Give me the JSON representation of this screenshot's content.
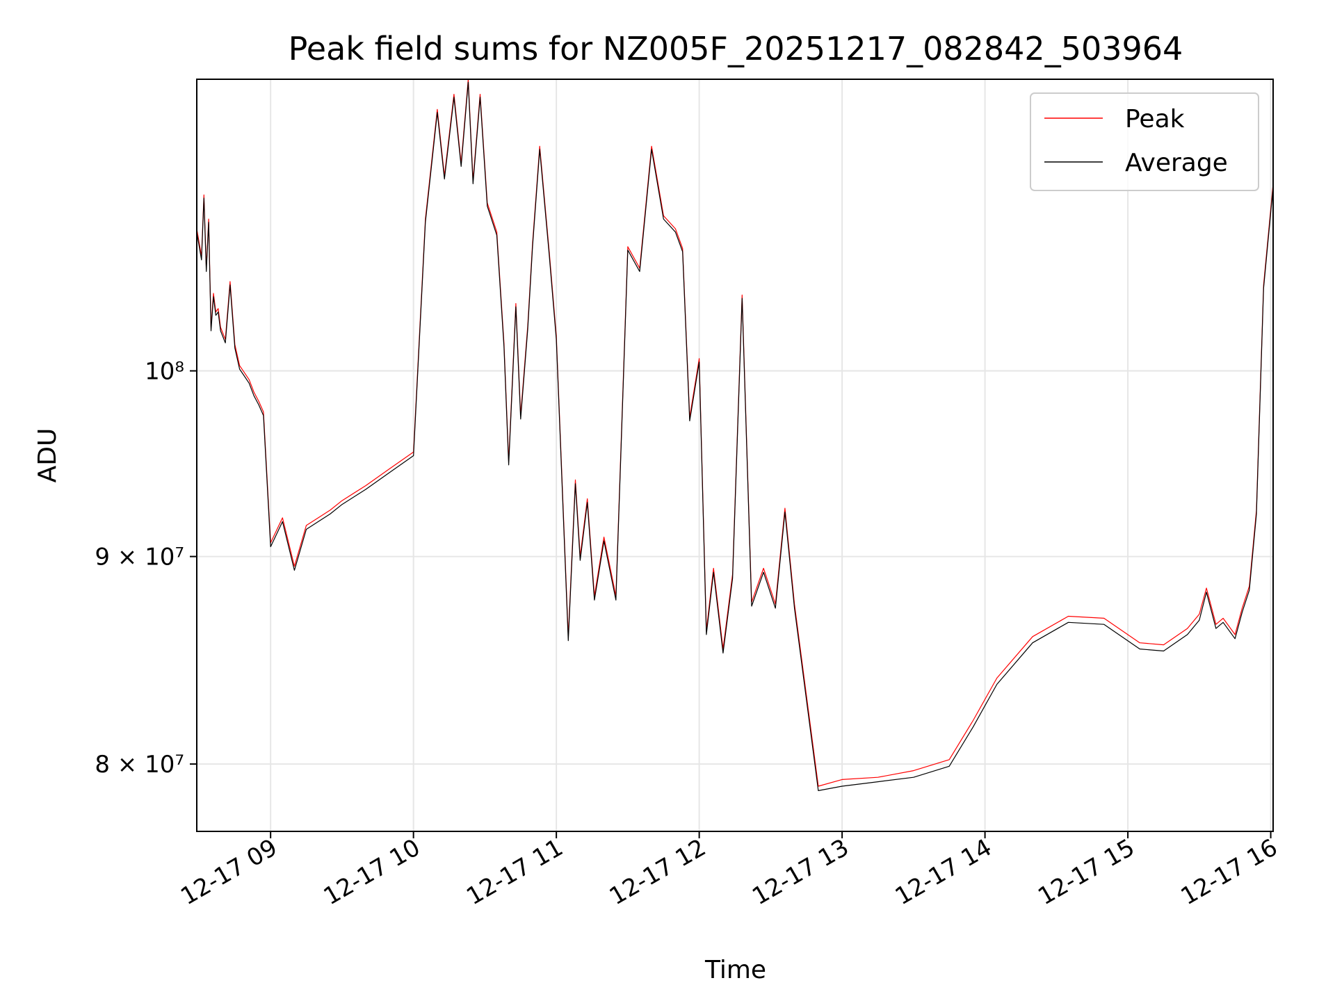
{
  "chart_data": {
    "type": "line",
    "title": "Peak field sums for NZ005F_20251217_082842_503964",
    "xlabel": "Time",
    "ylabel": "ADU",
    "y_scale": "log",
    "xlim": [
      "2025-12-17 08:29",
      "2025-12-17 16:01"
    ],
    "ylim": [
      77000000,
      118000000
    ],
    "x_ticks": [
      {
        "value": "2025-12-17 09:00",
        "label": "12-17 09"
      },
      {
        "value": "2025-12-17 10:00",
        "label": "12-17 10"
      },
      {
        "value": "2025-12-17 11:00",
        "label": "12-17 11"
      },
      {
        "value": "2025-12-17 12:00",
        "label": "12-17 12"
      },
      {
        "value": "2025-12-17 13:00",
        "label": "12-17 13"
      },
      {
        "value": "2025-12-17 14:00",
        "label": "12-17 14"
      },
      {
        "value": "2025-12-17 15:00",
        "label": "12-17 15"
      },
      {
        "value": "2025-12-17 16:00",
        "label": "12-17 16"
      }
    ],
    "y_ticks": [
      {
        "value": 80000000,
        "label": "8 × 10⁷"
      },
      {
        "value": 90000000,
        "label": "9 × 10⁷"
      },
      {
        "value": 100000000,
        "label": "10⁸"
      }
    ],
    "grid": true,
    "legend_position": "top-right",
    "series": [
      {
        "name": "Peak",
        "color": "#ff0000",
        "x": [
          "2025-12-17 08:29",
          "2025-12-17 08:31",
          "2025-12-17 08:32",
          "2025-12-17 08:33",
          "2025-12-17 08:34",
          "2025-12-17 08:35",
          "2025-12-17 08:36",
          "2025-12-17 08:37",
          "2025-12-17 08:38",
          "2025-12-17 08:39",
          "2025-12-17 08:41",
          "2025-12-17 08:43",
          "2025-12-17 08:45",
          "2025-12-17 08:47",
          "2025-12-17 08:49",
          "2025-12-17 08:51",
          "2025-12-17 08:53",
          "2025-12-17 08:55",
          "2025-12-17 08:57",
          "2025-12-17 09:00",
          "2025-12-17 09:05",
          "2025-12-17 09:10",
          "2025-12-17 09:15",
          "2025-12-17 09:20",
          "2025-12-17 09:25",
          "2025-12-17 09:30",
          "2025-12-17 09:40",
          "2025-12-17 09:50",
          "2025-12-17 10:00",
          "2025-12-17 10:05",
          "2025-12-17 10:10",
          "2025-12-17 10:13",
          "2025-12-17 10:17",
          "2025-12-17 10:20",
          "2025-12-17 10:23",
          "2025-12-17 10:25",
          "2025-12-17 10:28",
          "2025-12-17 10:31",
          "2025-12-17 10:35",
          "2025-12-17 10:38",
          "2025-12-17 10:40",
          "2025-12-17 10:43",
          "2025-12-17 10:45",
          "2025-12-17 10:48",
          "2025-12-17 10:50",
          "2025-12-17 10:53",
          "2025-12-17 10:57",
          "2025-12-17 11:00",
          "2025-12-17 11:05",
          "2025-12-17 11:08",
          "2025-12-17 11:10",
          "2025-12-17 11:13",
          "2025-12-17 11:16",
          "2025-12-17 11:20",
          "2025-12-17 11:25",
          "2025-12-17 11:30",
          "2025-12-17 11:35",
          "2025-12-17 11:40",
          "2025-12-17 11:45",
          "2025-12-17 11:50",
          "2025-12-17 11:53",
          "2025-12-17 11:56",
          "2025-12-17 12:00",
          "2025-12-17 12:03",
          "2025-12-17 12:06",
          "2025-12-17 12:10",
          "2025-12-17 12:14",
          "2025-12-17 12:18",
          "2025-12-17 12:22",
          "2025-12-17 12:27",
          "2025-12-17 12:32",
          "2025-12-17 12:36",
          "2025-12-17 12:40",
          "2025-12-17 12:50",
          "2025-12-17 13:00",
          "2025-12-17 13:15",
          "2025-12-17 13:30",
          "2025-12-17 13:45",
          "2025-12-17 13:55",
          "2025-12-17 14:05",
          "2025-12-17 14:20",
          "2025-12-17 14:35",
          "2025-12-17 14:50",
          "2025-12-17 15:05",
          "2025-12-17 15:15",
          "2025-12-17 15:25",
          "2025-12-17 15:30",
          "2025-12-17 15:33",
          "2025-12-17 15:37",
          "2025-12-17 15:40",
          "2025-12-17 15:45",
          "2025-12-17 15:48",
          "2025-12-17 15:51",
          "2025-12-17 15:54",
          "2025-12-17 15:57",
          "2025-12-17 16:01"
        ],
        "values": [
          108400000,
          106700000,
          110500000,
          106000000,
          109000000,
          102500000,
          104500000,
          103400000,
          103600000,
          102500000,
          101800000,
          105200000,
          101500000,
          100300000,
          99900000,
          99500000,
          98800000,
          98300000,
          97700000,
          90700000,
          92000000,
          89500000,
          91600000,
          92000000,
          92400000,
          92900000,
          93700000,
          94600000,
          95500000,
          109000000,
          116000000,
          111700000,
          117000000,
          112500000,
          118000000,
          111400000,
          117000000,
          110000000,
          108200000,
          101600000,
          95000000,
          103900000,
          97500000,
          102600000,
          107500000,
          113600000,
          107000000,
          102000000,
          86000000,
          94000000,
          90000000,
          93000000,
          88000000,
          91000000,
          88000000,
          107300000,
          106000000,
          113600000,
          109200000,
          108400000,
          107200000,
          97400000,
          100700000,
          86300000,
          89400000,
          85400000,
          89100000,
          104400000,
          87700000,
          89400000,
          87600000,
          92500000,
          87600000,
          79000000,
          79300000,
          79400000,
          79700000,
          80200000,
          82000000,
          84000000,
          86000000,
          87000000,
          86900000,
          85700000,
          85600000,
          86400000,
          87100000,
          88400000,
          86600000,
          86900000,
          86100000,
          87400000,
          88500000,
          92400000,
          105000000,
          111200000
        ],
        "line_width": 1.2
      },
      {
        "name": "Average",
        "color": "#000000",
        "x": [
          "2025-12-17 08:29",
          "2025-12-17 08:31",
          "2025-12-17 08:32",
          "2025-12-17 08:33",
          "2025-12-17 08:34",
          "2025-12-17 08:35",
          "2025-12-17 08:36",
          "2025-12-17 08:37",
          "2025-12-17 08:38",
          "2025-12-17 08:39",
          "2025-12-17 08:41",
          "2025-12-17 08:43",
          "2025-12-17 08:45",
          "2025-12-17 08:47",
          "2025-12-17 08:49",
          "2025-12-17 08:51",
          "2025-12-17 08:53",
          "2025-12-17 08:55",
          "2025-12-17 08:57",
          "2025-12-17 09:00",
          "2025-12-17 09:05",
          "2025-12-17 09:10",
          "2025-12-17 09:15",
          "2025-12-17 09:20",
          "2025-12-17 09:25",
          "2025-12-17 09:30",
          "2025-12-17 09:40",
          "2025-12-17 09:50",
          "2025-12-17 10:00",
          "2025-12-17 10:05",
          "2025-12-17 10:10",
          "2025-12-17 10:13",
          "2025-12-17 10:17",
          "2025-12-17 10:20",
          "2025-12-17 10:23",
          "2025-12-17 10:25",
          "2025-12-17 10:28",
          "2025-12-17 10:31",
          "2025-12-17 10:35",
          "2025-12-17 10:38",
          "2025-12-17 10:40",
          "2025-12-17 10:43",
          "2025-12-17 10:45",
          "2025-12-17 10:48",
          "2025-12-17 10:50",
          "2025-12-17 10:53",
          "2025-12-17 10:57",
          "2025-12-17 11:00",
          "2025-12-17 11:05",
          "2025-12-17 11:08",
          "2025-12-17 11:10",
          "2025-12-17 11:13",
          "2025-12-17 11:16",
          "2025-12-17 11:20",
          "2025-12-17 11:25",
          "2025-12-17 11:30",
          "2025-12-17 11:35",
          "2025-12-17 11:40",
          "2025-12-17 11:45",
          "2025-12-17 11:50",
          "2025-12-17 11:53",
          "2025-12-17 11:56",
          "2025-12-17 12:00",
          "2025-12-17 12:03",
          "2025-12-17 12:06",
          "2025-12-17 12:10",
          "2025-12-17 12:14",
          "2025-12-17 12:18",
          "2025-12-17 12:22",
          "2025-12-17 12:27",
          "2025-12-17 12:32",
          "2025-12-17 12:36",
          "2025-12-17 12:40",
          "2025-12-17 12:50",
          "2025-12-17 13:00",
          "2025-12-17 13:15",
          "2025-12-17 13:30",
          "2025-12-17 13:45",
          "2025-12-17 13:55",
          "2025-12-17 14:05",
          "2025-12-17 14:20",
          "2025-12-17 14:35",
          "2025-12-17 14:50",
          "2025-12-17 15:05",
          "2025-12-17 15:15",
          "2025-12-17 15:25",
          "2025-12-17 15:30",
          "2025-12-17 15:33",
          "2025-12-17 15:37",
          "2025-12-17 15:40",
          "2025-12-17 15:45",
          "2025-12-17 15:48",
          "2025-12-17 15:51",
          "2025-12-17 15:54",
          "2025-12-17 15:57",
          "2025-12-17 16:01"
        ],
        "values": [
          108200000,
          106500000,
          110300000,
          105800000,
          108800000,
          102300000,
          104300000,
          103200000,
          103400000,
          102300000,
          101600000,
          105000000,
          101300000,
          100100000,
          99700000,
          99300000,
          98600000,
          98100000,
          97500000,
          90500000,
          91800000,
          89300000,
          91400000,
          91800000,
          92200000,
          92700000,
          93500000,
          94400000,
          95300000,
          108800000,
          115800000,
          111500000,
          116800000,
          112300000,
          117800000,
          111200000,
          116800000,
          109800000,
          108000000,
          101400000,
          94800000,
          103700000,
          97300000,
          102400000,
          107300000,
          113400000,
          106800000,
          101800000,
          85800000,
          93800000,
          89800000,
          92800000,
          87800000,
          90800000,
          87800000,
          107100000,
          105800000,
          113400000,
          109000000,
          108200000,
          107000000,
          97200000,
          100500000,
          86100000,
          89200000,
          85200000,
          88900000,
          104200000,
          87500000,
          89200000,
          87400000,
          92300000,
          87400000,
          78800000,
          79000000,
          79200000,
          79400000,
          79900000,
          81700000,
          83700000,
          85700000,
          86700000,
          86600000,
          85400000,
          85300000,
          86100000,
          86800000,
          88200000,
          86400000,
          86700000,
          85900000,
          87200000,
          88300000,
          92200000,
          104800000,
          111000000
        ],
        "line_width": 1.2
      }
    ]
  }
}
